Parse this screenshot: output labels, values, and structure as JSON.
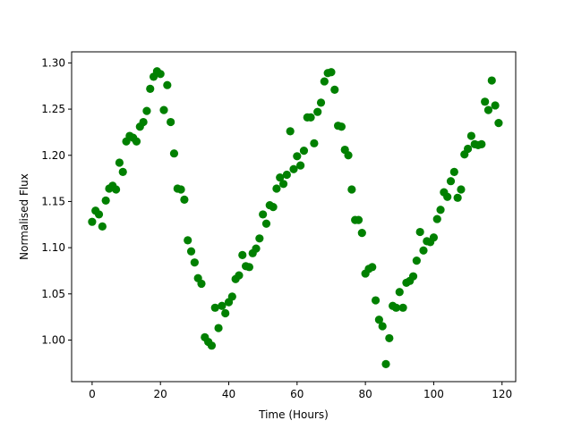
{
  "chart_data": {
    "type": "scatter",
    "title": "",
    "xlabel": "Time (Hours)",
    "ylabel": "Normalised Flux",
    "xlim": [
      -6,
      124
    ],
    "ylim": [
      0.955,
      1.312
    ],
    "xticks": [
      0,
      20,
      40,
      60,
      80,
      100,
      120
    ],
    "yticks": [
      1.0,
      1.05,
      1.1,
      1.15,
      1.2,
      1.25,
      1.3
    ],
    "xtick_labels": [
      "0",
      "20",
      "40",
      "60",
      "80",
      "100",
      "120"
    ],
    "ytick_labels": [
      "1.00",
      "1.05",
      "1.10",
      "1.15",
      "1.20",
      "1.25",
      "1.30"
    ],
    "grid": false,
    "marker_color": "#008000",
    "series": [
      {
        "x": [
          0,
          1,
          2,
          3,
          4,
          5,
          6,
          7,
          8,
          9,
          10,
          11,
          12,
          13,
          14,
          15,
          16,
          17,
          18,
          19,
          20,
          21,
          22,
          23,
          24,
          25,
          26,
          27,
          28,
          29,
          30,
          31,
          32,
          33,
          34,
          35,
          36,
          37,
          38,
          39,
          40,
          41,
          42,
          43,
          44,
          45,
          46,
          47,
          48,
          49,
          50,
          51,
          52,
          53,
          54,
          55,
          56,
          57,
          58,
          59,
          60,
          61,
          62,
          63,
          64,
          65,
          66,
          67,
          68,
          69,
          70,
          71,
          72,
          73,
          74,
          75,
          76,
          77,
          78,
          79,
          80,
          81,
          82,
          83,
          84,
          85,
          86,
          87,
          88,
          89,
          90,
          91,
          92,
          93,
          94,
          95,
          96,
          97,
          98,
          99,
          100,
          101,
          102,
          103,
          104,
          105,
          106,
          107,
          108,
          109,
          110,
          111,
          112,
          113,
          114,
          115,
          116,
          117,
          118,
          119
        ],
        "y": [
          1.128,
          1.14,
          1.136,
          1.123,
          1.151,
          1.164,
          1.167,
          1.163,
          1.192,
          1.182,
          1.215,
          1.221,
          1.219,
          1.215,
          1.231,
          1.236,
          1.248,
          1.272,
          1.285,
          1.291,
          1.288,
          1.249,
          1.276,
          1.236,
          1.202,
          1.164,
          1.163,
          1.152,
          1.108,
          1.096,
          1.084,
          1.067,
          1.061,
          1.003,
          0.998,
          0.994,
          1.035,
          1.013,
          1.037,
          1.029,
          1.041,
          1.047,
          1.066,
          1.07,
          1.092,
          1.08,
          1.079,
          1.094,
          1.099,
          1.11,
          1.136,
          1.126,
          1.146,
          1.144,
          1.164,
          1.176,
          1.169,
          1.179,
          1.226,
          1.185,
          1.199,
          1.189,
          1.205,
          1.241,
          1.241,
          1.213,
          1.247,
          1.257,
          1.28,
          1.289,
          1.29,
          1.271,
          1.232,
          1.231,
          1.206,
          1.2,
          1.163,
          1.13,
          1.13,
          1.116,
          1.072,
          1.077,
          1.079,
          1.043,
          1.022,
          1.015,
          0.974,
          1.002,
          1.037,
          1.035,
          1.052,
          1.035,
          1.062,
          1.064,
          1.069,
          1.086,
          1.117,
          1.097,
          1.107,
          1.106,
          1.111,
          1.131,
          1.141,
          1.16,
          1.155,
          1.172,
          1.182,
          1.154,
          1.163,
          1.201,
          1.207,
          1.221,
          1.212,
          1.211,
          1.212,
          1.258,
          1.249,
          1.281,
          1.254,
          1.235
        ]
      }
    ]
  }
}
